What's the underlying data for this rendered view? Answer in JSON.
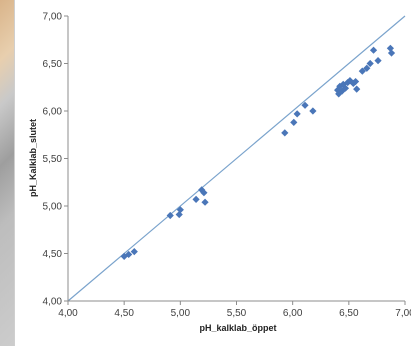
{
  "chart_data": {
    "type": "scatter",
    "xlabel": "pH_kalklab_öppet",
    "ylabel": "pH_Kalklab_slutet",
    "xlim": [
      4.0,
      7.0
    ],
    "ylim": [
      4.0,
      7.0
    ],
    "x_ticks": [
      "4,00",
      "4,50",
      "5,00",
      "5,50",
      "6,00",
      "6,50",
      "7,00"
    ],
    "y_ticks": [
      "4,00",
      "4,50",
      "5,00",
      "5,50",
      "6,00",
      "6,50",
      "7,00"
    ],
    "grid": false,
    "legend": "none",
    "reference_line": {
      "from": [
        4.0,
        4.0
      ],
      "to": [
        7.0,
        7.0
      ],
      "color": "#7aa3cc"
    },
    "marker_color": "#4a76b8",
    "points": [
      {
        "x": 4.5,
        "y": 4.47
      },
      {
        "x": 4.54,
        "y": 4.49
      },
      {
        "x": 4.59,
        "y": 4.52
      },
      {
        "x": 4.91,
        "y": 4.9
      },
      {
        "x": 4.99,
        "y": 4.91
      },
      {
        "x": 5.0,
        "y": 4.96
      },
      {
        "x": 5.14,
        "y": 5.07
      },
      {
        "x": 5.19,
        "y": 5.17
      },
      {
        "x": 5.21,
        "y": 5.14
      },
      {
        "x": 5.22,
        "y": 5.04
      },
      {
        "x": 5.93,
        "y": 5.77
      },
      {
        "x": 6.01,
        "y": 5.88
      },
      {
        "x": 6.04,
        "y": 5.97
      },
      {
        "x": 6.11,
        "y": 6.06
      },
      {
        "x": 6.18,
        "y": 6.0
      },
      {
        "x": 6.4,
        "y": 6.22
      },
      {
        "x": 6.41,
        "y": 6.18
      },
      {
        "x": 6.42,
        "y": 6.26
      },
      {
        "x": 6.44,
        "y": 6.21
      },
      {
        "x": 6.45,
        "y": 6.28
      },
      {
        "x": 6.47,
        "y": 6.24
      },
      {
        "x": 6.49,
        "y": 6.3
      },
      {
        "x": 6.51,
        "y": 6.32
      },
      {
        "x": 6.54,
        "y": 6.29
      },
      {
        "x": 6.56,
        "y": 6.31
      },
      {
        "x": 6.57,
        "y": 6.23
      },
      {
        "x": 6.62,
        "y": 6.42
      },
      {
        "x": 6.66,
        "y": 6.45
      },
      {
        "x": 6.69,
        "y": 6.5
      },
      {
        "x": 6.72,
        "y": 6.64
      },
      {
        "x": 6.76,
        "y": 6.53
      },
      {
        "x": 6.87,
        "y": 6.66
      },
      {
        "x": 6.88,
        "y": 6.61
      }
    ]
  }
}
